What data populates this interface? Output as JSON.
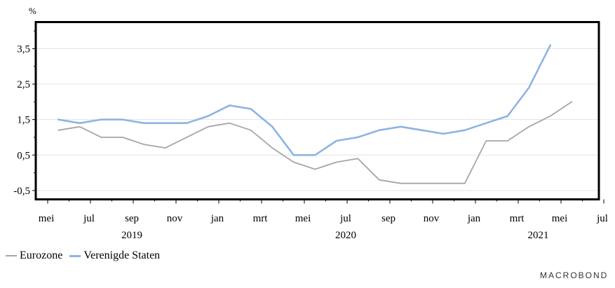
{
  "chart_data": {
    "type": "line",
    "unit": "%",
    "ylim": [
      -0.75,
      4.25
    ],
    "y_ticks": [
      -0.5,
      0.5,
      1.5,
      2.5,
      3.5
    ],
    "y_tick_labels": [
      "-0,5",
      "0,5",
      "1,5",
      "2,5",
      "3,5"
    ],
    "x_tick_labels": [
      "mei",
      "jul",
      "sep",
      "nov",
      "jan",
      "mrt",
      "mei",
      "jul",
      "sep",
      "nov",
      "jan",
      "mrt",
      "mei",
      "jul"
    ],
    "x_tick_months": [
      0,
      2,
      4,
      6,
      8,
      10,
      12,
      14,
      16,
      18,
      20,
      22,
      24,
      26
    ],
    "years": [
      {
        "label": "2019",
        "month": 4
      },
      {
        "label": "2020",
        "month": 14
      },
      {
        "label": "2021",
        "month": 23
      }
    ],
    "xlim": [
      0,
      26.5
    ],
    "grid": true,
    "legend": "bottom-left",
    "series": [
      {
        "name": "Eurozone",
        "color": "#a6a6a6",
        "x": [
          0.5,
          1.5,
          2.5,
          3.5,
          4.5,
          5.5,
          6.5,
          7.5,
          8.5,
          9.5,
          10.5,
          11.5,
          12.5,
          13.5,
          14.5,
          15.5,
          16.5,
          17.5,
          18.5,
          19.5,
          20.5,
          21.5,
          22.5,
          23.5,
          24.5
        ],
        "values": [
          1.2,
          1.3,
          1.0,
          1.0,
          0.8,
          0.7,
          1.0,
          1.3,
          1.4,
          1.2,
          0.7,
          0.3,
          0.1,
          0.3,
          0.4,
          -0.2,
          -0.3,
          -0.3,
          -0.3,
          -0.3,
          0.9,
          0.9,
          1.3,
          1.6,
          2.0
        ]
      },
      {
        "name": "Verenigde Staten",
        "color": "#8db4e2",
        "x": [
          0.5,
          1.5,
          2.5,
          3.5,
          4.5,
          5.5,
          6.5,
          7.5,
          8.5,
          9.5,
          10.5,
          11.5,
          12.5,
          13.5,
          14.5,
          15.5,
          16.5,
          17.5,
          18.5,
          19.5,
          20.5,
          21.5,
          22.5,
          23.5
        ],
        "values": [
          1.5,
          1.4,
          1.5,
          1.5,
          1.4,
          1.4,
          1.4,
          1.6,
          1.9,
          1.8,
          1.3,
          0.5,
          0.5,
          0.9,
          1.0,
          1.2,
          1.3,
          1.2,
          1.1,
          1.2,
          1.4,
          1.6,
          2.4,
          3.6
        ]
      }
    ]
  },
  "legend_items": [
    "Eurozone",
    "Verenigde Staten"
  ],
  "branding": "MACROBOND"
}
